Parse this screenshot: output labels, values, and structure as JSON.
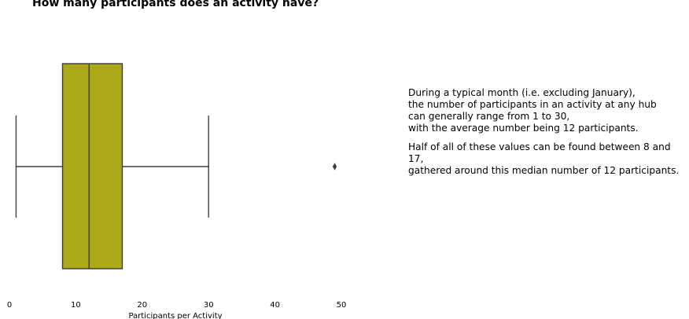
{
  "chart_data": {
    "type": "box",
    "orientation": "horizontal",
    "title": "How many participants does an activity have?",
    "xlabel": "Participants per Activity",
    "xlim": [
      0,
      50
    ],
    "xticks": [
      0,
      10,
      20,
      30,
      40,
      50
    ],
    "box": {
      "whisker_low": 1,
      "q1": 8,
      "median": 12,
      "q3": 17,
      "whisker_high": 30,
      "outliers": [
        49
      ]
    },
    "colors": {
      "box_fill": "#aba918",
      "line": "#3d3d3d"
    },
    "grid": false
  },
  "notes": {
    "paragraph1": [
      "During a typical month (i.e. excluding January),",
      "the number of participants in an activity at any hub",
      "can generally range from 1 to 30,",
      "with the average number being 12 participants."
    ],
    "paragraph2": [
      "Half of all of these values can be found between 8 and 17,",
      "gathered around this median number of 12 participants."
    ]
  }
}
